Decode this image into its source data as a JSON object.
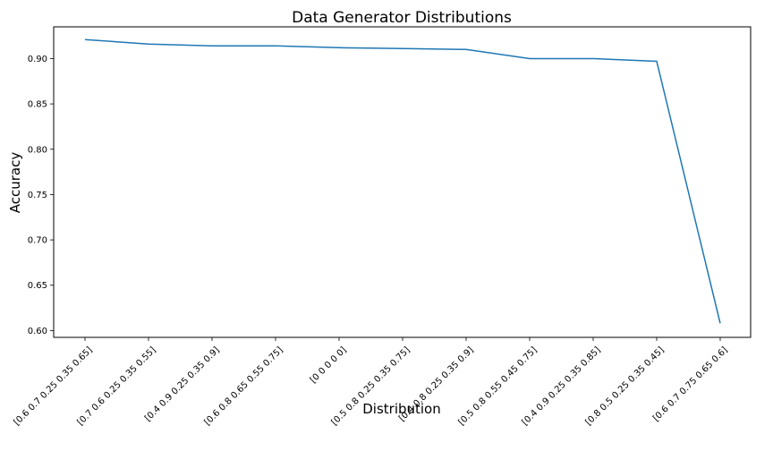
{
  "chart_data": {
    "type": "line",
    "title": "Data Generator Distributions",
    "xlabel": "Distribution",
    "ylabel": "Accuracy",
    "categories": [
      "[0.6 0.7 0.25 0.35 0.65]",
      "[0.7 0.6 0.25 0.35 0.55]",
      "[0.4 0.9 0.25 0.35 0.9]",
      "[0.6 0.8 0.65 0.55 0.75]",
      "[0 0 0 0 0]",
      "[0.5 0.8 0.25 0.35 0.75]",
      "[0.4 0.8 0.25 0.35 0.9]",
      "[0.5 0.8 0.55 0.45 0.75]",
      "[0.4 0.9 0.25 0.35 0.85]",
      "[0.8 0.5 0.25 0.35 0.45]",
      "[0.6 0.7 0.75 0.65 0.6]"
    ],
    "series": [
      {
        "values": [
          0.921,
          0.916,
          0.914,
          0.914,
          0.912,
          0.911,
          0.91,
          0.9,
          0.9,
          0.897,
          0.608
        ]
      }
    ],
    "ylim": [
      0.5925,
      0.935
    ],
    "yticks": [
      0.6,
      0.65,
      0.7,
      0.75,
      0.8,
      0.85,
      0.9
    ],
    "ytick_labels": [
      "0.60",
      "0.65",
      "0.70",
      "0.75",
      "0.80",
      "0.85",
      "0.90"
    ],
    "line_color": "#1f77b4",
    "grid": false,
    "legend": "none"
  }
}
